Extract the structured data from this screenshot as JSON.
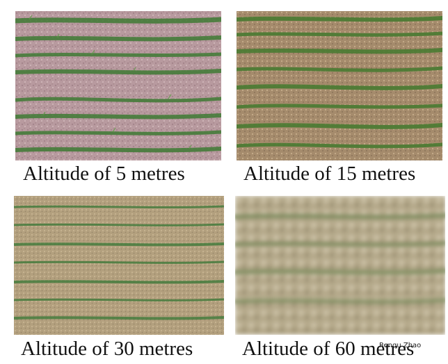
{
  "panels": [
    {
      "id": "5m",
      "caption": "Altitude of 5 metres",
      "soil_color": "#b89a9f",
      "crop_color": "#3f7a34"
    },
    {
      "id": "15m",
      "caption": "Altitude of 15 metres",
      "soil_color": "#a58b6c",
      "crop_color": "#4a7b32"
    },
    {
      "id": "30m",
      "caption": "Altitude of 30 metres",
      "soil_color": "#b3a07e",
      "crop_color": "#3f7a3a"
    },
    {
      "id": "60m",
      "caption": "Altitude of 60 metres",
      "soil_color": "#b6aa8c",
      "crop_color": "#7f8d60"
    }
  ],
  "watermark": "Renqu Zhao"
}
